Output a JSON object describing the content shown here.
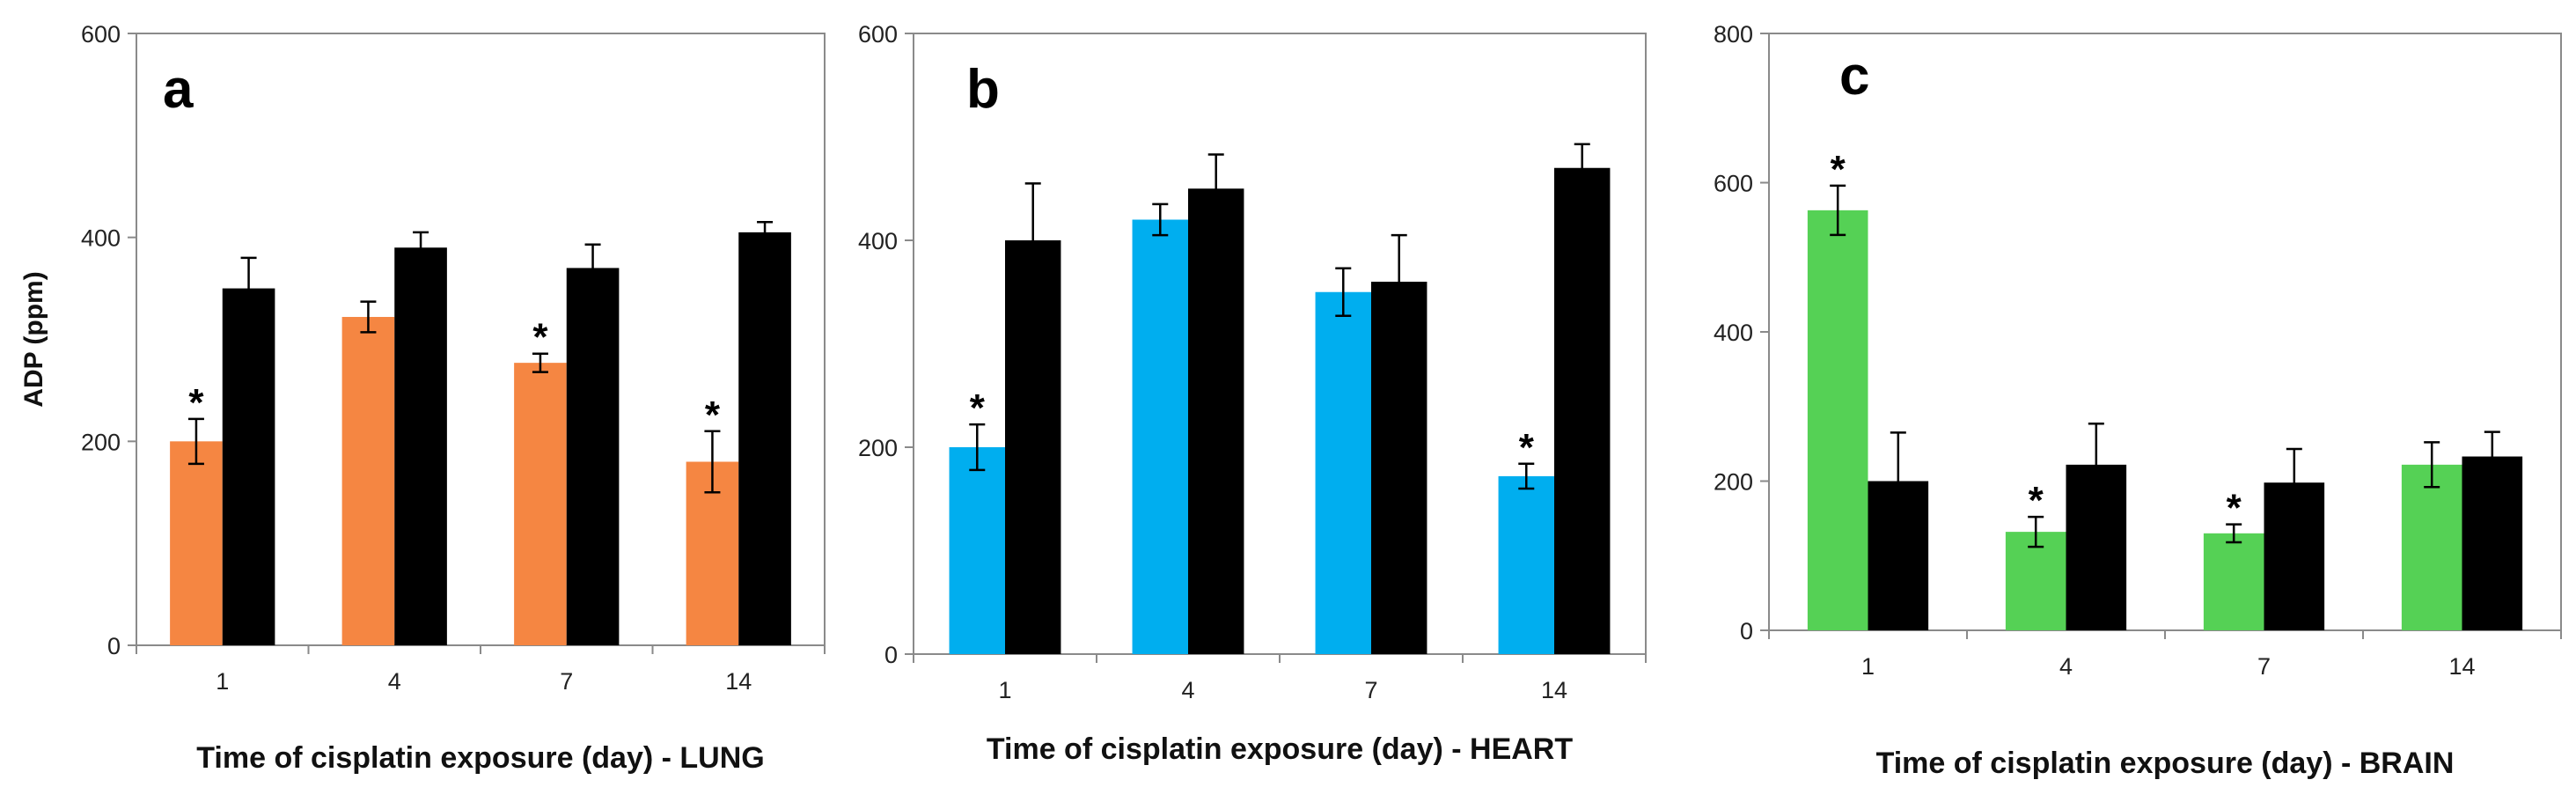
{
  "chart_data": [
    {
      "type": "bar",
      "panel_label": "a",
      "xlabel": "Time of cisplatin exposure (day) - LUNG",
      "ylabel": "ADP (ppm)",
      "categories": [
        "1",
        "4",
        "7",
        "14"
      ],
      "ylim": [
        0,
        600
      ],
      "yticks": [
        "0",
        "200",
        "400",
        "600"
      ],
      "series": [
        {
          "color": "#F58642",
          "values": [
            200,
            322,
            277,
            180
          ],
          "errors": [
            22,
            15,
            9,
            30
          ],
          "significant": [
            true,
            false,
            true,
            true
          ]
        },
        {
          "color": "#000000",
          "values": [
            350,
            390,
            370,
            405
          ],
          "errors": [
            30,
            15,
            23,
            10
          ],
          "significant": [
            false,
            false,
            false,
            false
          ]
        }
      ],
      "star_symbol": "*"
    },
    {
      "type": "bar",
      "panel_label": "b",
      "xlabel": "Time of cisplatin exposure (day) - HEART",
      "ylabel": "",
      "categories": [
        "1",
        "4",
        "7",
        "14"
      ],
      "ylim": [
        0,
        600
      ],
      "yticks": [
        "0",
        "200",
        "400",
        "600"
      ],
      "series": [
        {
          "color": "#00AEEF",
          "values": [
            200,
            420,
            350,
            172
          ],
          "errors": [
            22,
            15,
            23,
            12
          ],
          "significant": [
            true,
            false,
            false,
            true
          ]
        },
        {
          "color": "#000000",
          "values": [
            400,
            450,
            360,
            470
          ],
          "errors": [
            55,
            33,
            45,
            23
          ],
          "significant": [
            false,
            false,
            false,
            false
          ]
        }
      ],
      "star_symbol": "*"
    },
    {
      "type": "bar",
      "panel_label": "c",
      "xlabel": "Time of cisplatin exposure (day) - BRAIN",
      "ylabel": "",
      "categories": [
        "1",
        "4",
        "7",
        "14"
      ],
      "ylim": [
        0,
        800
      ],
      "yticks": [
        "0",
        "200",
        "400",
        "600",
        "800"
      ],
      "series": [
        {
          "color": "#55D155",
          "values": [
            563,
            132,
            130,
            222
          ],
          "errors": [
            33,
            20,
            12,
            30
          ],
          "significant": [
            true,
            true,
            true,
            false
          ]
        },
        {
          "color": "#000000",
          "values": [
            200,
            222,
            198,
            233
          ],
          "errors": [
            65,
            55,
            45,
            33
          ],
          "significant": [
            false,
            false,
            false,
            false
          ]
        }
      ],
      "star_symbol": "*"
    }
  ]
}
